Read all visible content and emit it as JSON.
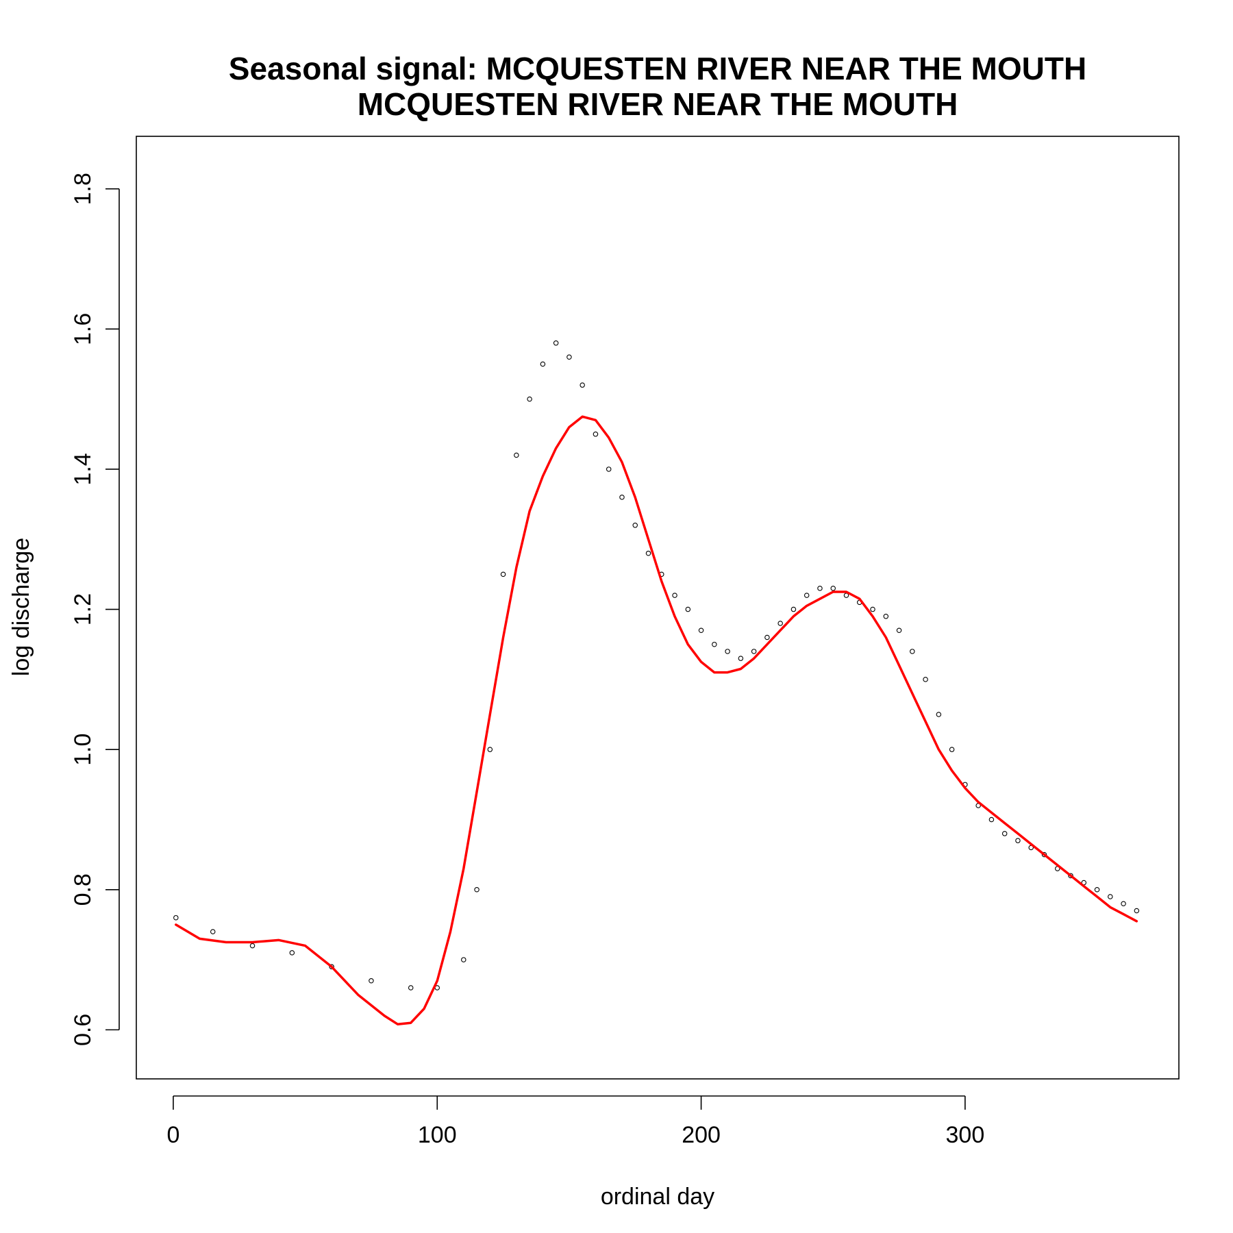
{
  "chart_data": {
    "type": "scatter",
    "title": "Seasonal signal: MCQUESTEN RIVER NEAR THE MOUTH",
    "subtitle": "MCQUESTEN RIVER NEAR THE MOUTH",
    "xlabel": "ordinal day",
    "ylabel": "log discharge",
    "xlim": [
      -14,
      381
    ],
    "ylim": [
      0.53,
      1.875
    ],
    "x_ticks": [
      0,
      100,
      200,
      300
    ],
    "y_ticks": [
      0.6,
      0.8,
      1.0,
      1.2,
      1.4,
      1.6,
      1.8
    ],
    "x_tick_labels": [
      "0",
      "100",
      "200",
      "300"
    ],
    "y_tick_labels": [
      "0.6",
      "0.8",
      "1.0",
      "1.2",
      "1.4",
      "1.6",
      "1.8"
    ],
    "grid": false,
    "legend": "none",
    "points_color": "#000000",
    "curve_color": "#ff0000",
    "series": [
      {
        "kind": "points",
        "description_key": "daily observations",
        "x": [
          1,
          15,
          30,
          45,
          60,
          75,
          90,
          100,
          110,
          115,
          120,
          125,
          130,
          135,
          140,
          145,
          150,
          155,
          160,
          165,
          170,
          175,
          180,
          185,
          190,
          195,
          200,
          205,
          210,
          215,
          220,
          225,
          230,
          235,
          240,
          245,
          250,
          255,
          260,
          265,
          270,
          275,
          280,
          285,
          290,
          295,
          300,
          305,
          310,
          315,
          320,
          325,
          330,
          335,
          340,
          345,
          350,
          355,
          360,
          365
        ],
        "y": [
          0.76,
          0.74,
          0.72,
          0.71,
          0.69,
          0.67,
          0.66,
          0.66,
          0.7,
          0.8,
          1.0,
          1.25,
          1.42,
          1.5,
          1.55,
          1.58,
          1.56,
          1.52,
          1.45,
          1.4,
          1.36,
          1.32,
          1.28,
          1.25,
          1.22,
          1.2,
          1.17,
          1.15,
          1.14,
          1.13,
          1.14,
          1.16,
          1.18,
          1.2,
          1.22,
          1.23,
          1.23,
          1.22,
          1.21,
          1.2,
          1.19,
          1.17,
          1.14,
          1.1,
          1.05,
          1.0,
          0.95,
          0.92,
          0.9,
          0.88,
          0.87,
          0.86,
          0.85,
          0.83,
          0.82,
          0.81,
          0.8,
          0.79,
          0.78,
          0.77
        ]
      },
      {
        "kind": "line",
        "description_key": "smoothed seasonal signal",
        "x": [
          1,
          10,
          20,
          30,
          40,
          50,
          60,
          70,
          80,
          85,
          90,
          95,
          100,
          105,
          110,
          115,
          120,
          125,
          130,
          135,
          140,
          145,
          150,
          155,
          160,
          165,
          170,
          175,
          180,
          185,
          190,
          195,
          200,
          205,
          210,
          215,
          220,
          225,
          230,
          235,
          240,
          245,
          250,
          255,
          260,
          265,
          270,
          275,
          280,
          285,
          290,
          295,
          300,
          305,
          310,
          315,
          320,
          325,
          330,
          335,
          340,
          345,
          350,
          355,
          360,
          365
        ],
        "y": [
          0.75,
          0.73,
          0.725,
          0.725,
          0.728,
          0.72,
          0.69,
          0.65,
          0.62,
          0.608,
          0.61,
          0.63,
          0.67,
          0.74,
          0.83,
          0.94,
          1.05,
          1.16,
          1.26,
          1.34,
          1.39,
          1.43,
          1.46,
          1.475,
          1.47,
          1.445,
          1.41,
          1.36,
          1.3,
          1.24,
          1.19,
          1.15,
          1.125,
          1.11,
          1.11,
          1.115,
          1.13,
          1.15,
          1.17,
          1.19,
          1.205,
          1.215,
          1.225,
          1.225,
          1.215,
          1.19,
          1.16,
          1.12,
          1.08,
          1.04,
          1.0,
          0.97,
          0.945,
          0.925,
          0.91,
          0.895,
          0.88,
          0.865,
          0.85,
          0.835,
          0.82,
          0.805,
          0.79,
          0.775,
          0.765,
          0.755
        ]
      }
    ]
  }
}
